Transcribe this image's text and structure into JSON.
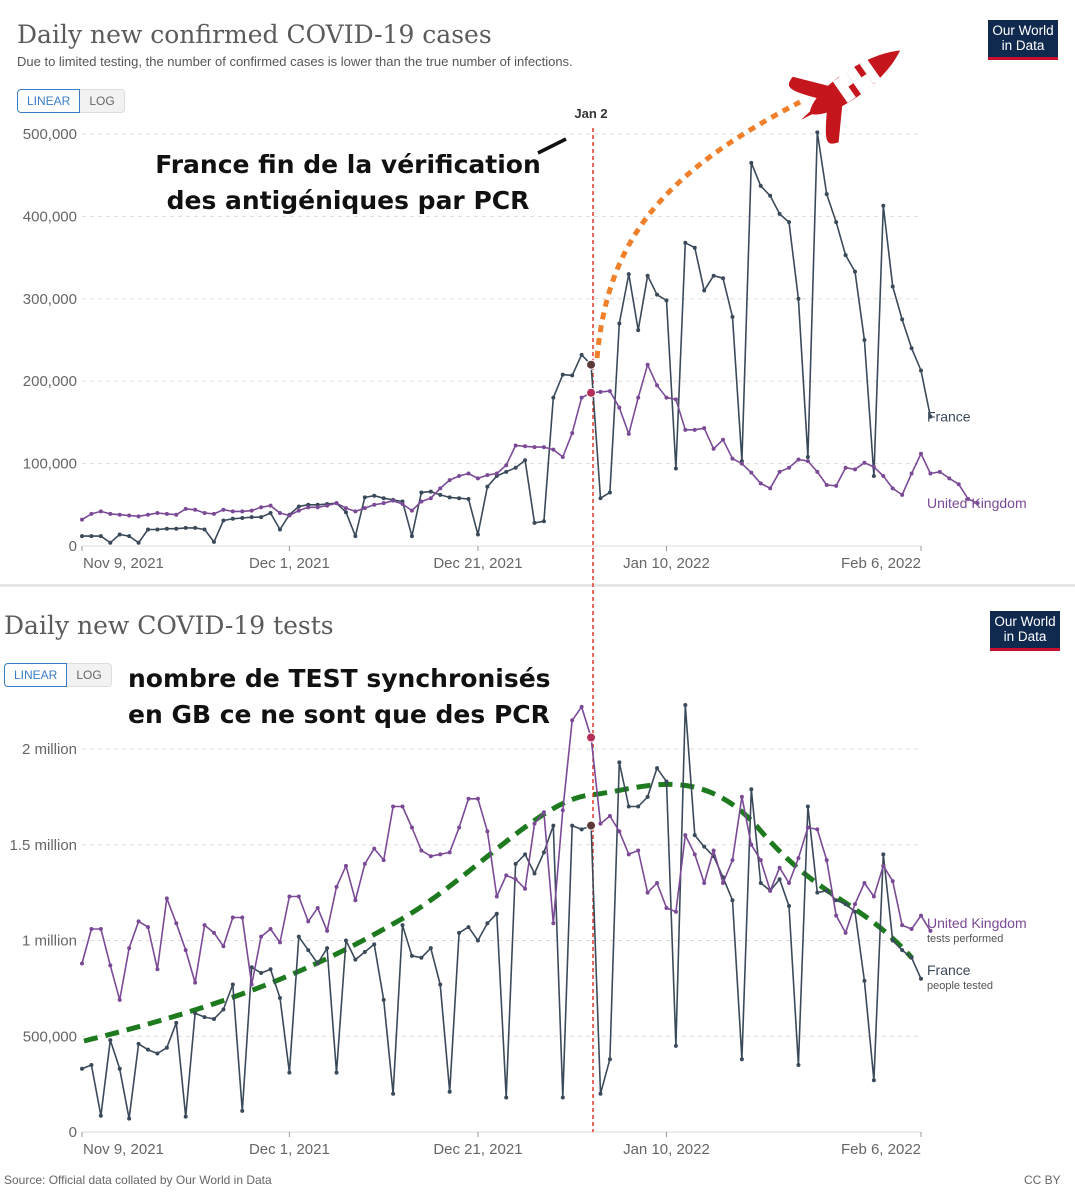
{
  "top_chart": {
    "title": "Daily new confirmed COVID-19 cases",
    "subtitle": "Due to limited testing, the number of confirmed cases is lower than the true number of infections.",
    "toggle": {
      "linear": "LINEAR",
      "log": "LOG"
    },
    "logo": {
      "line1": "Our World",
      "line2": "in Data"
    },
    "annotation": {
      "line1": "France fin de la vérification",
      "line2": "des antigéniques par PCR"
    },
    "marker_label": "Jan 2"
  },
  "bottom_chart": {
    "title": "Daily new COVID-19 tests",
    "toggle": {
      "linear": "LINEAR",
      "log": "LOG"
    },
    "logo": {
      "line1": "Our World",
      "line2": "in Data"
    },
    "annotation": {
      "line1": "nombre de TEST synchronisés",
      "line2": "en GB ce ne sont que des PCR"
    }
  },
  "footer": {
    "source": "Source: Official data collated by Our World in Data",
    "license": "CC BY"
  },
  "colors": {
    "france": "#3b4a5a",
    "uk": "#7b4a96",
    "marker": "#e23a2c",
    "rocket_trail": "#f07f2a",
    "trend": "#1e7a1e",
    "grid": "#dcdcdc"
  },
  "chart_data": [
    {
      "type": "line",
      "title": "Daily new confirmed COVID-19 cases",
      "x_tick_labels": [
        "Nov 9, 2021",
        "Dec 1, 2021",
        "Dec 21, 2021",
        "Jan 10, 2022",
        "Feb 6, 2022"
      ],
      "x_tick_dates": [
        "2021-11-09",
        "2021-12-01",
        "2021-12-21",
        "2022-01-10",
        "2022-02-06"
      ],
      "x_start": "2021-11-09",
      "ylim": [
        0,
        500000
      ],
      "y_ticks": [
        0,
        100000,
        200000,
        300000,
        400000,
        500000
      ],
      "y_tick_labels": [
        "0",
        "100,000",
        "200,000",
        "300,000",
        "400,000",
        "500,000"
      ],
      "grid": true,
      "marker_date": "2022-01-02",
      "series": [
        {
          "name": "France",
          "values": [
            12000,
            12000,
            12000,
            4000,
            14000,
            12000,
            4000,
            20000,
            20000,
            21000,
            21000,
            22000,
            22000,
            20000,
            5000,
            31000,
            33000,
            34000,
            35000,
            35000,
            40000,
            20000,
            38000,
            48000,
            50000,
            50000,
            51000,
            52000,
            41000,
            12000,
            59000,
            61000,
            58000,
            56000,
            54000,
            12000,
            65000,
            66000,
            62000,
            59000,
            58000,
            57000,
            14000,
            72000,
            85000,
            90000,
            95000,
            104000,
            28000,
            30000,
            180000,
            208000,
            207000,
            232000,
            220000,
            58000,
            65000,
            270000,
            330000,
            262000,
            328000,
            305000,
            298000,
            94000,
            368000,
            362000,
            310000,
            328000,
            325000,
            278000,
            103000,
            465000,
            437000,
            425000,
            403000,
            393000,
            300000,
            108000,
            502000,
            427000,
            393000,
            353000,
            333000,
            250000,
            85000,
            413000,
            315000,
            275000,
            240000,
            213000,
            157000
          ]
        },
        {
          "name": "United Kingdom",
          "values": [
            32000,
            39000,
            42000,
            39000,
            38000,
            37000,
            36000,
            38000,
            40000,
            39000,
            38000,
            45000,
            44000,
            40000,
            39000,
            44000,
            42000,
            42000,
            43000,
            47000,
            49000,
            40000,
            37000,
            43000,
            47000,
            47000,
            49000,
            52000,
            46000,
            42000,
            46000,
            50000,
            52000,
            55000,
            51000,
            43000,
            54000,
            58000,
            70000,
            80000,
            85000,
            88000,
            82000,
            86000,
            88000,
            98000,
            122000,
            121000,
            120000,
            120000,
            117000,
            108000,
            137000,
            180000,
            186000,
            187000,
            188000,
            168000,
            136000,
            180000,
            220000,
            195000,
            180000,
            178000,
            141000,
            141000,
            143000,
            118000,
            129000,
            106000,
            100000,
            89000,
            76000,
            70000,
            90000,
            95000,
            105000,
            103000,
            90000,
            74000,
            73000,
            95000,
            93000,
            101000,
            96000,
            85000,
            70000,
            62000,
            88000,
            112000,
            88000,
            90000,
            82000,
            75000,
            57000,
            52000
          ]
        }
      ]
    },
    {
      "type": "line",
      "title": "Daily new COVID-19 tests",
      "x_tick_labels": [
        "Nov 9, 2021",
        "Dec 1, 2021",
        "Dec 21, 2021",
        "Jan 10, 2022",
        "Feb 6, 2022"
      ],
      "x_tick_dates": [
        "2021-11-09",
        "2021-12-01",
        "2021-12-21",
        "2022-01-10",
        "2022-02-06"
      ],
      "x_start": "2021-11-09",
      "ylim": [
        0,
        2250000
      ],
      "y_ticks": [
        0,
        500000,
        1000000,
        1500000,
        2000000
      ],
      "y_tick_labels": [
        "0",
        "500,000",
        "1 million",
        "1.5 million",
        "2 million"
      ],
      "grid": true,
      "marker_date": "2022-01-02",
      "series": [
        {
          "name": "France",
          "note": "people tested",
          "values": [
            330000,
            350000,
            85000,
            480000,
            330000,
            70000,
            460000,
            430000,
            410000,
            440000,
            570000,
            80000,
            620000,
            600000,
            590000,
            640000,
            770000,
            110000,
            860000,
            830000,
            850000,
            700000,
            310000,
            1020000,
            950000,
            880000,
            960000,
            310000,
            1000000,
            900000,
            940000,
            980000,
            690000,
            200000,
            1080000,
            920000,
            910000,
            960000,
            770000,
            210000,
            1040000,
            1070000,
            1000000,
            1090000,
            1140000,
            180000,
            1400000,
            1450000,
            1350000,
            1460000,
            1600000,
            180000,
            1600000,
            1580000,
            1600000,
            200000,
            380000,
            1930000,
            1700000,
            1700000,
            1750000,
            1900000,
            1830000,
            450000,
            2230000,
            1550000,
            1490000,
            1440000,
            1330000,
            1210000,
            380000,
            1790000,
            1300000,
            1260000,
            1320000,
            1180000,
            350000,
            1700000,
            1250000,
            1260000,
            1210000,
            1190000,
            1150000,
            790000,
            270000,
            1450000,
            1000000,
            950000,
            910000,
            800000
          ]
        },
        {
          "name": "United Kingdom",
          "note": "tests performed",
          "values": [
            880000,
            1060000,
            1060000,
            870000,
            690000,
            960000,
            1100000,
            1070000,
            850000,
            1220000,
            1090000,
            950000,
            780000,
            1080000,
            1040000,
            970000,
            1120000,
            1120000,
            770000,
            1020000,
            1060000,
            990000,
            1230000,
            1230000,
            1100000,
            1170000,
            1050000,
            1280000,
            1390000,
            1210000,
            1400000,
            1480000,
            1420000,
            1700000,
            1700000,
            1590000,
            1470000,
            1440000,
            1450000,
            1460000,
            1590000,
            1740000,
            1740000,
            1570000,
            1230000,
            1340000,
            1320000,
            1270000,
            1610000,
            1670000,
            1090000,
            1680000,
            2150000,
            2220000,
            2060000,
            1610000,
            1650000,
            1570000,
            1450000,
            1470000,
            1250000,
            1300000,
            1170000,
            1150000,
            1550000,
            1450000,
            1300000,
            1470000,
            1300000,
            1420000,
            1750000,
            1500000,
            1420000,
            1260000,
            1380000,
            1300000,
            1430000,
            1590000,
            1580000,
            1420000,
            1130000,
            1040000,
            1190000,
            1300000,
            1230000,
            1390000,
            1310000,
            1080000,
            1060000,
            1130000,
            1050000
          ]
        }
      ]
    }
  ]
}
